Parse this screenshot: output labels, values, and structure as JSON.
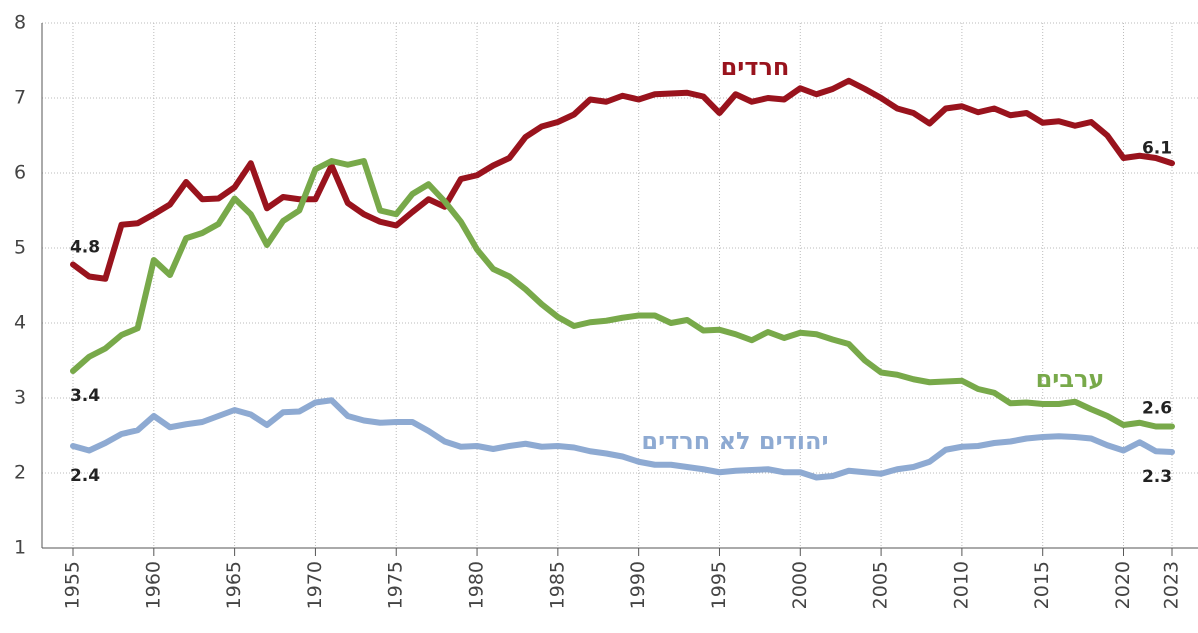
{
  "chart_data": {
    "type": "line",
    "x": [
      1955,
      1956,
      1957,
      1958,
      1959,
      1960,
      1961,
      1962,
      1963,
      1964,
      1965,
      1966,
      1967,
      1968,
      1969,
      1970,
      1971,
      1972,
      1973,
      1974,
      1975,
      1976,
      1977,
      1978,
      1979,
      1980,
      1981,
      1982,
      1983,
      1984,
      1985,
      1986,
      1987,
      1988,
      1989,
      1990,
      1991,
      1992,
      1993,
      1994,
      1995,
      1996,
      1997,
      1998,
      1999,
      2000,
      2001,
      2002,
      2003,
      2004,
      2005,
      2006,
      2007,
      2008,
      2009,
      2010,
      2011,
      2012,
      2013,
      2014,
      2015,
      2016,
      2017,
      2018,
      2019,
      2020,
      2021,
      2022,
      2023
    ],
    "xlim": [
      1955,
      2023
    ],
    "xticks": [
      1955,
      1960,
      1965,
      1970,
      1975,
      1980,
      1985,
      1990,
      1995,
      2000,
      2005,
      2010,
      2015,
      2020,
      2023
    ],
    "ylim": [
      1,
      8
    ],
    "yticks": [
      1,
      2,
      3,
      4,
      5,
      6,
      7,
      8
    ],
    "grid": true,
    "series": [
      {
        "name": "חרדים",
        "color": "#99131d",
        "values": [
          4.78,
          4.62,
          4.59,
          5.31,
          5.33,
          5.45,
          5.58,
          5.88,
          5.65,
          5.66,
          5.81,
          6.13,
          5.53,
          5.68,
          5.65,
          5.65,
          6.1,
          5.6,
          5.45,
          5.35,
          5.3,
          5.48,
          5.65,
          5.55,
          5.92,
          5.97,
          6.1,
          6.2,
          6.48,
          6.62,
          6.68,
          6.78,
          6.98,
          6.95,
          7.03,
          6.98,
          7.05,
          7.06,
          7.07,
          7.02,
          6.8,
          7.05,
          6.95,
          7.0,
          6.98,
          7.13,
          7.05,
          7.12,
          7.23,
          7.12,
          7.0,
          6.86,
          6.8,
          6.66,
          6.86,
          6.89,
          6.81,
          6.86,
          6.77,
          6.8,
          6.67,
          6.69,
          6.63,
          6.68,
          6.5,
          6.2,
          6.23,
          6.2,
          6.13
        ],
        "value_labels": [
          "4.8",
          null,
          null,
          null,
          null,
          null,
          null,
          null,
          null,
          null,
          null,
          null,
          null,
          null,
          null,
          null,
          null,
          null,
          null,
          null,
          null,
          null,
          null,
          null,
          null,
          null,
          null,
          null,
          null,
          null,
          null,
          null,
          null,
          null,
          null,
          null,
          null,
          null,
          null,
          null,
          null,
          null,
          null,
          null,
          null,
          null,
          null,
          null,
          null,
          null,
          null,
          null,
          null,
          null,
          null,
          null,
          null,
          null,
          null,
          null,
          null,
          null,
          null,
          null,
          null,
          null,
          null,
          null,
          "6.1"
        ]
      },
      {
        "name": "ערבים",
        "color": "#78a94a",
        "values": [
          3.36,
          3.55,
          3.66,
          3.84,
          3.93,
          4.84,
          4.64,
          5.13,
          5.2,
          5.32,
          5.66,
          5.45,
          5.04,
          5.36,
          5.5,
          6.05,
          6.16,
          6.11,
          6.16,
          5.5,
          5.45,
          5.72,
          5.85,
          5.62,
          5.35,
          4.98,
          4.72,
          4.62,
          4.45,
          4.25,
          4.08,
          3.96,
          4.01,
          4.03,
          4.07,
          4.1,
          4.1,
          4.0,
          4.04,
          3.9,
          3.91,
          3.85,
          3.77,
          3.88,
          3.8,
          3.87,
          3.85,
          3.78,
          3.72,
          3.5,
          3.34,
          3.31,
          3.25,
          3.21,
          3.22,
          3.23,
          3.12,
          3.07,
          2.93,
          2.94,
          2.92,
          2.92,
          2.95,
          2.85,
          2.76,
          2.64,
          2.67,
          2.62,
          2.62
        ],
        "value_labels": [
          "3.4",
          null,
          null,
          null,
          null,
          null,
          null,
          null,
          null,
          null,
          null,
          null,
          null,
          null,
          null,
          null,
          null,
          null,
          null,
          null,
          null,
          null,
          null,
          null,
          null,
          null,
          null,
          null,
          null,
          null,
          null,
          null,
          null,
          null,
          null,
          null,
          null,
          null,
          null,
          null,
          null,
          null,
          null,
          null,
          null,
          null,
          null,
          null,
          null,
          null,
          null,
          null,
          null,
          null,
          null,
          null,
          null,
          null,
          null,
          null,
          null,
          null,
          null,
          null,
          null,
          null,
          null,
          null,
          "2.6"
        ]
      },
      {
        "name": "יהודים לא חרדים",
        "color": "#8eaad2",
        "values": [
          2.36,
          2.3,
          2.4,
          2.52,
          2.57,
          2.76,
          2.61,
          2.65,
          2.68,
          2.76,
          2.84,
          2.78,
          2.64,
          2.81,
          2.82,
          2.94,
          2.97,
          2.76,
          2.7,
          2.67,
          2.68,
          2.68,
          2.56,
          2.42,
          2.35,
          2.36,
          2.32,
          2.36,
          2.39,
          2.35,
          2.36,
          2.34,
          2.29,
          2.26,
          2.22,
          2.15,
          2.11,
          2.11,
          2.08,
          2.05,
          2.01,
          2.03,
          2.04,
          2.05,
          2.01,
          2.01,
          1.94,
          1.96,
          2.03,
          2.01,
          1.99,
          2.05,
          2.08,
          2.15,
          2.31,
          2.35,
          2.36,
          2.4,
          2.42,
          2.46,
          2.48,
          2.49,
          2.48,
          2.46,
          2.37,
          2.3,
          2.41,
          2.29,
          2.28
        ],
        "value_labels": [
          "2.4",
          null,
          null,
          null,
          null,
          null,
          null,
          null,
          null,
          null,
          null,
          null,
          null,
          null,
          null,
          null,
          null,
          null,
          null,
          null,
          null,
          null,
          null,
          null,
          null,
          null,
          null,
          null,
          null,
          null,
          null,
          null,
          null,
          null,
          null,
          null,
          null,
          null,
          null,
          null,
          null,
          null,
          null,
          null,
          null,
          null,
          null,
          null,
          null,
          null,
          null,
          null,
          null,
          null,
          null,
          null,
          null,
          null,
          null,
          null,
          null,
          null,
          null,
          null,
          null,
          null,
          null,
          null,
          "2.3"
        ]
      }
    ]
  }
}
